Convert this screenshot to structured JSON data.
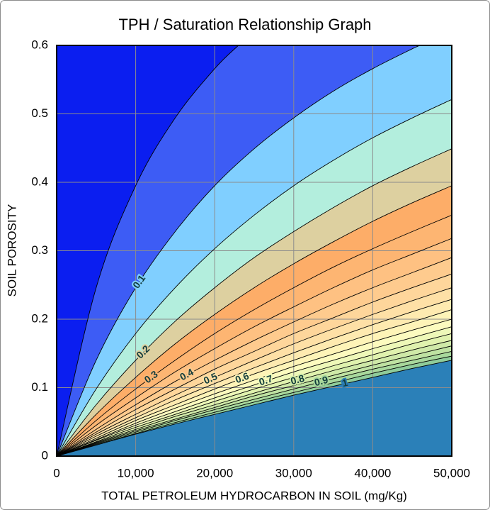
{
  "chart_data": {
    "type": "contour",
    "title": "TPH / Saturation Relationship Graph",
    "x_label": "TOTAL PETROLEUM HYDROCARBON IN SOIL (mg/Kg)",
    "y_label": "SOIL POROSITY",
    "xlim": [
      0,
      50000
    ],
    "ylim": [
      0,
      0.6
    ],
    "xticks": [
      0,
      {
        "value": 10000,
        "label": "10,000"
      },
      {
        "value": 20000,
        "label": "20,000"
      },
      {
        "value": 30000,
        "label": "30,000"
      },
      {
        "value": 40000,
        "label": "40,000"
      },
      {
        "value": 50000,
        "label": "50,000"
      }
    ],
    "yticks": [
      0,
      0.1,
      0.2,
      0.3,
      0.4,
      0.5,
      0.6
    ],
    "grid": true,
    "background_color": "#0b1ef0",
    "contours": [
      {
        "level": 0.05,
        "color": "#3d5cf5",
        "x": [
          0,
          5000,
          10000,
          15000,
          20000,
          23000
        ],
        "values": [
          0,
          0.246,
          0.395,
          0.494,
          0.566,
          0.6
        ]
      },
      {
        "level": 0.1,
        "color": "#80cfff",
        "x": [
          0,
          5000,
          10000,
          15000,
          20000,
          25000,
          30000,
          35000,
          40000,
          45000,
          46000
        ],
        "values": [
          0,
          0.14,
          0.246,
          0.328,
          0.395,
          0.449,
          0.494,
          0.533,
          0.566,
          0.595,
          0.6
        ]
      },
      {
        "level": 0.15,
        "color": "#b3eedd",
        "x": [
          0,
          5000,
          10000,
          15000,
          20000,
          25000,
          30000,
          35000,
          40000,
          45000,
          50000
        ],
        "values": [
          0,
          0.098,
          0.179,
          0.246,
          0.303,
          0.352,
          0.395,
          0.432,
          0.465,
          0.494,
          0.521
        ]
      },
      {
        "level": 0.2,
        "color": "#ddd0a0",
        "x": [
          0,
          5000,
          10000,
          15000,
          20000,
          25000,
          30000,
          35000,
          40000,
          45000,
          50000
        ],
        "values": [
          0,
          0.075,
          0.14,
          0.197,
          0.246,
          0.29,
          0.328,
          0.363,
          0.395,
          0.423,
          0.449
        ]
      },
      {
        "level": 0.25,
        "color": "#fdad68",
        "x": [
          0,
          5000,
          10000,
          15000,
          20000,
          25000,
          30000,
          35000,
          40000,
          45000,
          50000
        ],
        "values": [
          0,
          0.061,
          0.115,
          0.164,
          0.207,
          0.246,
          0.281,
          0.313,
          0.343,
          0.37,
          0.395
        ]
      },
      {
        "level": 0.3,
        "color": "#fdb572",
        "x": [
          0,
          5000,
          10000,
          15000,
          20000,
          25000,
          30000,
          35000,
          40000,
          45000,
          50000
        ],
        "values": [
          0,
          0.052,
          0.098,
          0.14,
          0.179,
          0.214,
          0.246,
          0.276,
          0.303,
          0.328,
          0.352
        ]
      },
      {
        "level": 0.35,
        "color": "#fec182",
        "x": [
          0,
          5000,
          10000,
          15000,
          20000,
          25000,
          30000,
          35000,
          40000,
          45000,
          50000
        ],
        "values": [
          0,
          0.045,
          0.085,
          0.123,
          0.157,
          0.189,
          0.218,
          0.246,
          0.272,
          0.295,
          0.318
        ]
      },
      {
        "level": 0.4,
        "color": "#fecb8e",
        "x": [
          0,
          5000,
          10000,
          15000,
          20000,
          25000,
          30000,
          35000,
          40000,
          45000,
          50000
        ],
        "values": [
          0,
          0.039,
          0.075,
          0.109,
          0.14,
          0.169,
          0.196,
          0.222,
          0.246,
          0.268,
          0.29
        ]
      },
      {
        "level": 0.45,
        "color": "#fed69b",
        "x": [
          0,
          5000,
          10000,
          15000,
          20000,
          25000,
          30000,
          35000,
          40000,
          45000,
          50000
        ],
        "values": [
          0,
          0.035,
          0.068,
          0.098,
          0.127,
          0.153,
          0.179,
          0.202,
          0.225,
          0.246,
          0.266
        ]
      },
      {
        "level": 0.5,
        "color": "#fee0a6",
        "x": [
          0,
          5000,
          10000,
          15000,
          20000,
          25000,
          30000,
          35000,
          40000,
          45000,
          50000
        ],
        "values": [
          0,
          0.032,
          0.061,
          0.089,
          0.115,
          0.14,
          0.164,
          0.186,
          0.207,
          0.227,
          0.246
        ]
      },
      {
        "level": 0.55,
        "color": "#feeab0",
        "x": [
          0,
          5000,
          10000,
          15000,
          20000,
          25000,
          30000,
          35000,
          40000,
          45000,
          50000
        ],
        "values": [
          0,
          0.029,
          0.056,
          0.082,
          0.106,
          0.129,
          0.151,
          0.172,
          0.192,
          0.211,
          0.229
        ]
      },
      {
        "level": 0.6,
        "color": "#fef4b8",
        "x": [
          0,
          5000,
          10000,
          15000,
          20000,
          25000,
          30000,
          35000,
          40000,
          45000,
          50000
        ],
        "values": [
          0,
          0.026,
          0.052,
          0.075,
          0.098,
          0.12,
          0.14,
          0.16,
          0.179,
          0.196,
          0.214
        ]
      },
      {
        "level": 0.65,
        "color": "#fcfbbf",
        "x": [
          0,
          5000,
          10000,
          15000,
          20000,
          25000,
          30000,
          35000,
          40000,
          45000,
          50000
        ],
        "values": [
          0,
          0.024,
          0.048,
          0.07,
          0.091,
          0.111,
          0.131,
          0.149,
          0.167,
          0.184,
          0.2
        ]
      },
      {
        "level": 0.7,
        "color": "#eef8b8",
        "x": [
          0,
          5000,
          10000,
          15000,
          20000,
          25000,
          30000,
          35000,
          40000,
          45000,
          50000
        ],
        "values": [
          0,
          0.023,
          0.045,
          0.065,
          0.085,
          0.104,
          0.123,
          0.14,
          0.157,
          0.173,
          0.189
        ]
      },
      {
        "level": 0.75,
        "color": "#e0f2ae",
        "x": [
          0,
          5000,
          10000,
          15000,
          20000,
          25000,
          30000,
          35000,
          40000,
          45000,
          50000
        ],
        "values": [
          0,
          0.021,
          0.042,
          0.061,
          0.08,
          0.098,
          0.115,
          0.132,
          0.148,
          0.164,
          0.179
        ]
      },
      {
        "level": 0.8,
        "color": "#cfe9a8",
        "x": [
          0,
          5000,
          10000,
          15000,
          20000,
          25000,
          30000,
          35000,
          40000,
          45000,
          50000
        ],
        "values": [
          0,
          0.02,
          0.039,
          0.058,
          0.075,
          0.092,
          0.109,
          0.125,
          0.14,
          0.155,
          0.169
        ]
      },
      {
        "level": 0.85,
        "color": "#bfe2a2",
        "x": [
          0,
          5000,
          10000,
          15000,
          20000,
          25000,
          30000,
          35000,
          40000,
          45000,
          50000
        ],
        "values": [
          0,
          0.019,
          0.037,
          0.054,
          0.071,
          0.088,
          0.103,
          0.118,
          0.133,
          0.147,
          0.161
        ]
      },
      {
        "level": 0.9,
        "color": "#a8d89c",
        "x": [
          0,
          5000,
          10000,
          15000,
          20000,
          25000,
          30000,
          35000,
          40000,
          45000,
          50000
        ],
        "values": [
          0,
          0.018,
          0.035,
          0.052,
          0.068,
          0.083,
          0.098,
          0.113,
          0.127,
          0.14,
          0.153
        ]
      },
      {
        "level": 0.95,
        "color": "#8fcc9a",
        "x": [
          0,
          5000,
          10000,
          15000,
          20000,
          25000,
          30000,
          35000,
          40000,
          45000,
          50000
        ],
        "values": [
          0,
          0.017,
          0.033,
          0.049,
          0.064,
          0.079,
          0.093,
          0.107,
          0.121,
          0.134,
          0.146
        ]
      },
      {
        "level": 1,
        "color": "#2b80b8",
        "x": [
          0,
          5000,
          10000,
          15000,
          20000,
          25000,
          30000,
          35000,
          40000,
          45000,
          50000
        ],
        "values": [
          0,
          0.016,
          0.032,
          0.047,
          0.061,
          0.075,
          0.089,
          0.102,
          0.115,
          0.128,
          0.14
        ]
      }
    ]
  }
}
